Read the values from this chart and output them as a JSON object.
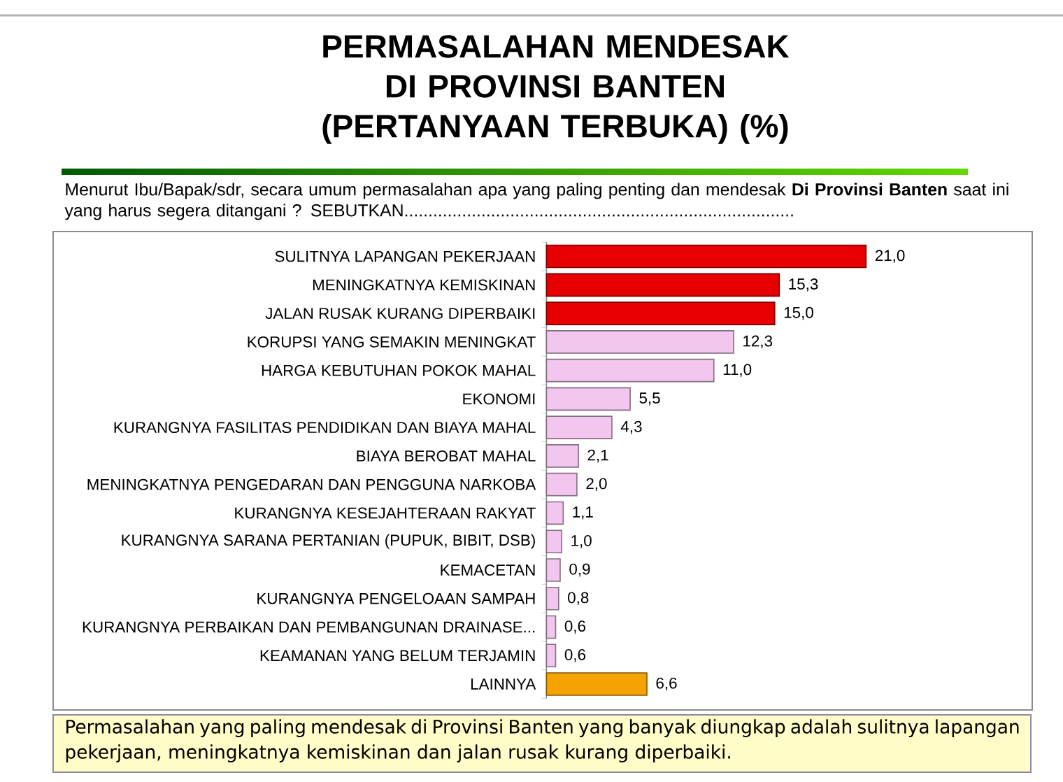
{
  "chart_data": {
    "type": "bar",
    "orientation": "horizontal",
    "title": "PERMASALAHAN MENDESAK DI PROVINSI BANTEN (PERTANYAAN TERBUKA) (%)",
    "subtitle": "Menurut Ibu/Bapak/sdr, secara umum permasalahan apa yang paling penting dan mendesak **Di Provinsi Banten** saat ini yang harus segera ditangani ? SEBUTKAN.................................................................................",
    "categories": [
      "SULITNYA LAPANGAN PEKERJAAN",
      "MENINGKATNYA KEMISKINAN",
      "JALAN RUSAK KURANG DIPERBAIKI",
      "KORUPSI YANG SEMAKIN MENINGKAT",
      "HARGA KEBUTUHAN POKOK MAHAL",
      "EKONOMI",
      "KURANGNYA FASILITAS PENDIDIKAN DAN BIAYA MAHAL",
      "BIAYA BEROBAT MAHAL",
      "MENINGKATNYA PENGEDARAN DAN PENGGUNA NARKOBA",
      "KURANGNYA KESEJAHTERAAN RAKYAT",
      "KURANGNYA SARANA PERTANIAN (PUPUK, BIBIT, DSB)",
      "KEMACETAN",
      "KURANGNYA PENGELOAAN SAMPAH",
      "KURANGNYA PERBAIKAN DAN PEMBANGUNAN DRAINASE...",
      "KEAMANAN YANG BELUM TERJAMIN",
      "LAINNYA"
    ],
    "values": [
      21.0,
      15.3,
      15.0,
      12.3,
      11.0,
      5.5,
      4.3,
      2.1,
      2.0,
      1.1,
      1.0,
      0.9,
      0.8,
      0.6,
      0.6,
      6.6
    ],
    "value_labels": [
      "21,0",
      "15,3",
      "15,0",
      "12,3",
      "11,0",
      "5,5",
      "4,3",
      "2,1",
      "2,0",
      "1,1",
      "1,0",
      "0,9",
      "0,8",
      "0,6",
      "0,6",
      "6,6"
    ],
    "colors": [
      "#e60000",
      "#e60000",
      "#e60000",
      "#f2c6ee",
      "#f2c6ee",
      "#f2c6ee",
      "#f2c6ee",
      "#f2c6ee",
      "#f2c6ee",
      "#f2c6ee",
      "#f2c6ee",
      "#f2c6ee",
      "#f2c6ee",
      "#f2c6ee",
      "#f2c6ee",
      "#f5a300"
    ],
    "annotations": [
      "Permasalahan yang paling mendesak di Provinsi Banten yang banyak diungkap adalah sulitnya lapangan pekerjaan, meningkatnya kemiskinan dan jalan rusak kurang diperbaiki."
    ]
  }
}
